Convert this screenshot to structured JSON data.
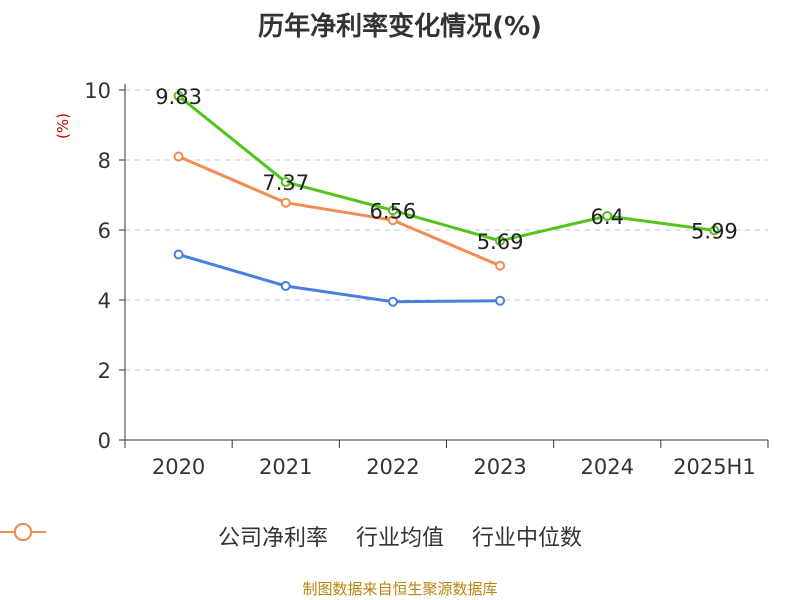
{
  "title": "历年净利率变化情况(%)",
  "source": "制图数据来自恒生聚源数据库",
  "chart_data": {
    "type": "line",
    "categories": [
      "2020",
      "2021",
      "2022",
      "2023",
      "2024",
      "2025H1"
    ],
    "ylabel": "(%)",
    "ylim": [
      0,
      10
    ],
    "yticks": [
      0,
      2,
      4,
      6,
      8,
      10
    ],
    "grid": true,
    "legend": "bottom",
    "series": [
      {
        "name": "公司净利率",
        "color": "#52c41a",
        "values": [
          9.83,
          7.37,
          6.56,
          5.69,
          6.4,
          5.99
        ],
        "labels": [
          "9.83",
          "7.37",
          "6.56",
          "5.69",
          "6.4",
          "5.99"
        ]
      },
      {
        "name": "行业均值",
        "color": "#4a7fdb",
        "values": [
          5.3,
          4.4,
          3.95,
          3.98,
          null,
          null
        ]
      },
      {
        "name": "行业中位数",
        "color": "#f28b54",
        "values": [
          8.1,
          6.78,
          6.28,
          4.98,
          null,
          null
        ]
      }
    ]
  }
}
